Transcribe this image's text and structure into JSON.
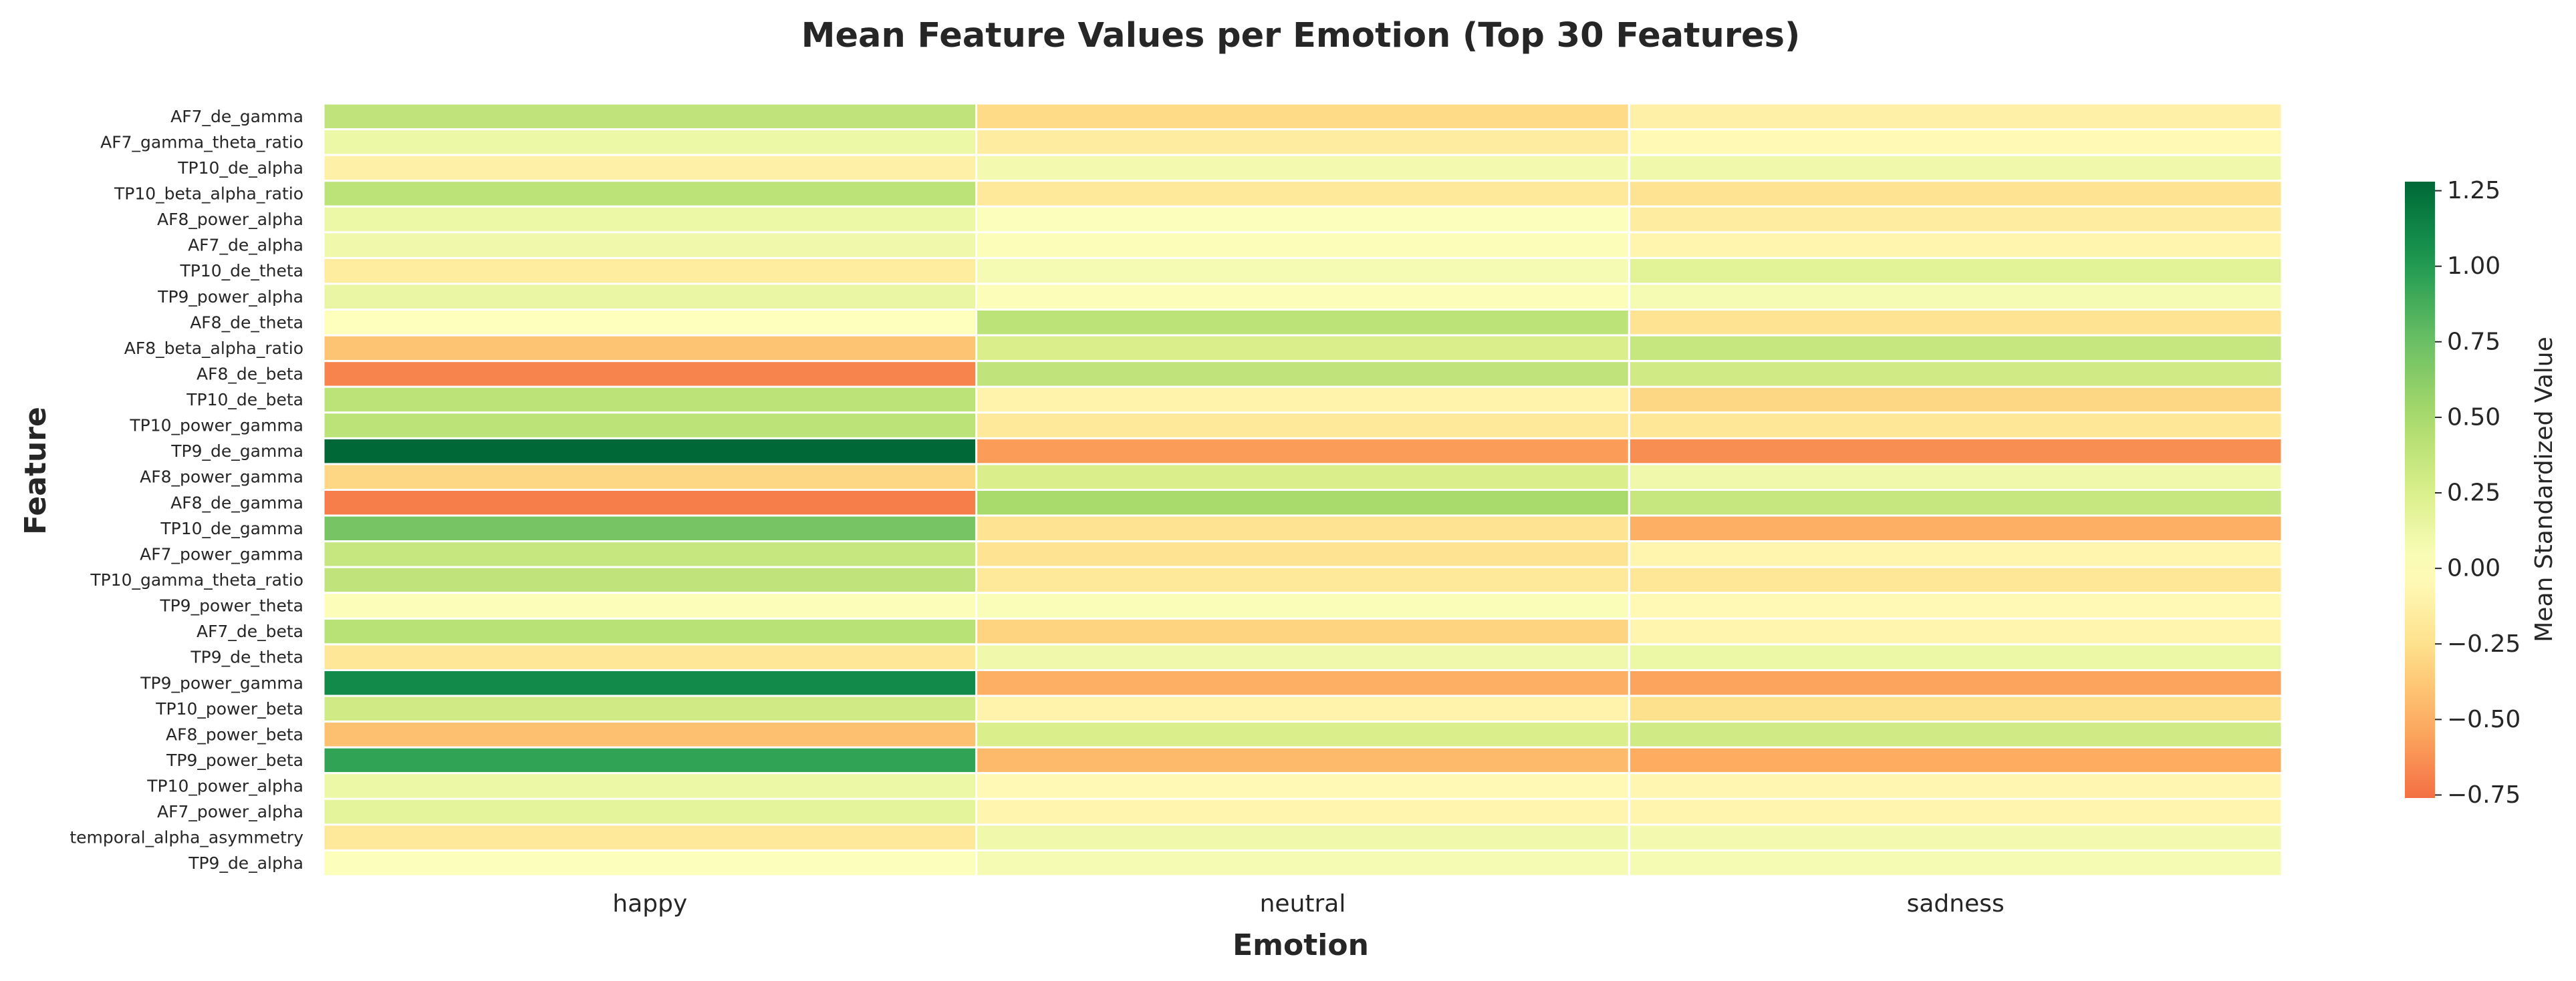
{
  "chart_data": {
    "type": "heatmap",
    "title": "Mean Feature Values per Emotion (Top 30 Features)",
    "xlabel": "Emotion",
    "ylabel": "Feature",
    "x": [
      "happy",
      "neutral",
      "sadness"
    ],
    "y": [
      "AF7_de_gamma",
      "AF7_gamma_theta_ratio",
      "TP10_de_alpha",
      "TP10_beta_alpha_ratio",
      "AF8_power_alpha",
      "AF7_de_alpha",
      "TP10_de_theta",
      "TP9_power_alpha",
      "AF8_de_theta",
      "AF8_beta_alpha_ratio",
      "AF8_de_beta",
      "TP10_de_beta",
      "TP10_power_gamma",
      "TP9_de_gamma",
      "AF8_power_gamma",
      "AF8_de_gamma",
      "TP10_de_gamma",
      "AF7_power_gamma",
      "TP10_gamma_theta_ratio",
      "TP9_power_theta",
      "AF7_de_beta",
      "TP9_de_theta",
      "TP9_power_gamma",
      "TP10_power_beta",
      "AF8_power_beta",
      "TP9_power_beta",
      "TP10_power_alpha",
      "AF7_power_alpha",
      "temporal_alpha_asymmetry",
      "TP9_de_alpha"
    ],
    "values": [
      [
        0.38,
        -0.28,
        -0.12
      ],
      [
        0.12,
        -0.15,
        -0.05
      ],
      [
        -0.12,
        0.08,
        0.1
      ],
      [
        0.4,
        -0.18,
        -0.22
      ],
      [
        0.12,
        0.02,
        -0.15
      ],
      [
        0.1,
        0.03,
        -0.08
      ],
      [
        -0.16,
        0.06,
        0.2
      ],
      [
        0.14,
        0.03,
        0.06
      ],
      [
        0.01,
        0.4,
        -0.22
      ],
      [
        -0.4,
        0.25,
        0.35
      ],
      [
        -0.68,
        0.38,
        0.3
      ],
      [
        0.4,
        -0.1,
        -0.3
      ],
      [
        0.4,
        -0.18,
        -0.2
      ],
      [
        1.28,
        -0.58,
        -0.64
      ],
      [
        -0.3,
        0.25,
        0.1
      ],
      [
        -0.7,
        0.5,
        0.35
      ],
      [
        0.7,
        -0.22,
        -0.5
      ],
      [
        0.35,
        -0.22,
        -0.08
      ],
      [
        0.38,
        -0.18,
        -0.2
      ],
      [
        0.03,
        0.04,
        -0.05
      ],
      [
        0.42,
        -0.32,
        -0.08
      ],
      [
        -0.2,
        0.1,
        0.12
      ],
      [
        1.1,
        -0.5,
        -0.55
      ],
      [
        0.3,
        -0.1,
        -0.25
      ],
      [
        -0.42,
        0.25,
        0.3
      ],
      [
        0.95,
        -0.45,
        -0.52
      ],
      [
        0.12,
        -0.05,
        -0.07
      ],
      [
        0.18,
        -0.08,
        -0.08
      ],
      [
        -0.18,
        0.1,
        0.08
      ],
      [
        0.02,
        0.06,
        0.06
      ]
    ],
    "colorbar": {
      "label": "Mean Standardized Value",
      "ticks": [
        1.25,
        1.0,
        0.75,
        0.5,
        0.25,
        0.0,
        -0.25,
        -0.5,
        -0.75
      ],
      "tick_labels": [
        "1.25",
        "1.00",
        "0.75",
        "0.50",
        "0.25",
        "0.00",
        "−0.25",
        "−0.50",
        "−0.75"
      ],
      "min": -0.76,
      "max": 1.28,
      "colormap": "RdYlGn",
      "center": 0.0
    }
  }
}
